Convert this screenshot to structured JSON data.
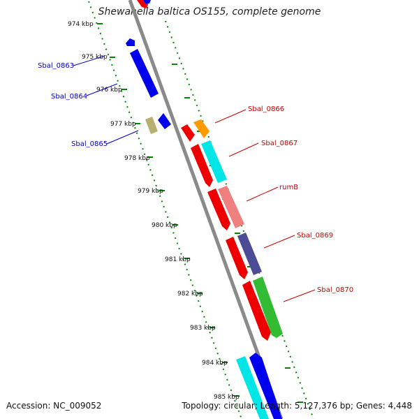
{
  "title": "Shewanella baltica OS155, complete genome",
  "footer": {
    "accession": "Accession: NC_009052",
    "summary": "Topology: circular; Length: 5,127,376 bp; Genes: 4,448"
  },
  "ticks": [
    "974 kbp",
    "975 kbp",
    "976 kbp",
    "977 kbp",
    "978 kbp",
    "979 kbp",
    "980 kbp",
    "981 kbp",
    "982 kbp",
    "983 kbp",
    "984 kbp",
    "985 kbp"
  ],
  "genes": {
    "blue_labels": [
      "Sbal_0863",
      "Sbal_0864",
      "Sbal_0865"
    ],
    "red_labels": [
      "Sbal_0866",
      "Sbal_0867",
      "rumB",
      "Sbal_0869",
      "Sbal_0870"
    ]
  },
  "colors": {
    "backbone": "#888888",
    "dots": "#008800",
    "blue": "#0000ee",
    "red": "#ee0000",
    "orange": "#ff9900",
    "cyan": "#00e6e6",
    "pink": "#f08080",
    "slate": "#4b4b96",
    "green": "#33bb33",
    "khaki": "#b8b070"
  }
}
